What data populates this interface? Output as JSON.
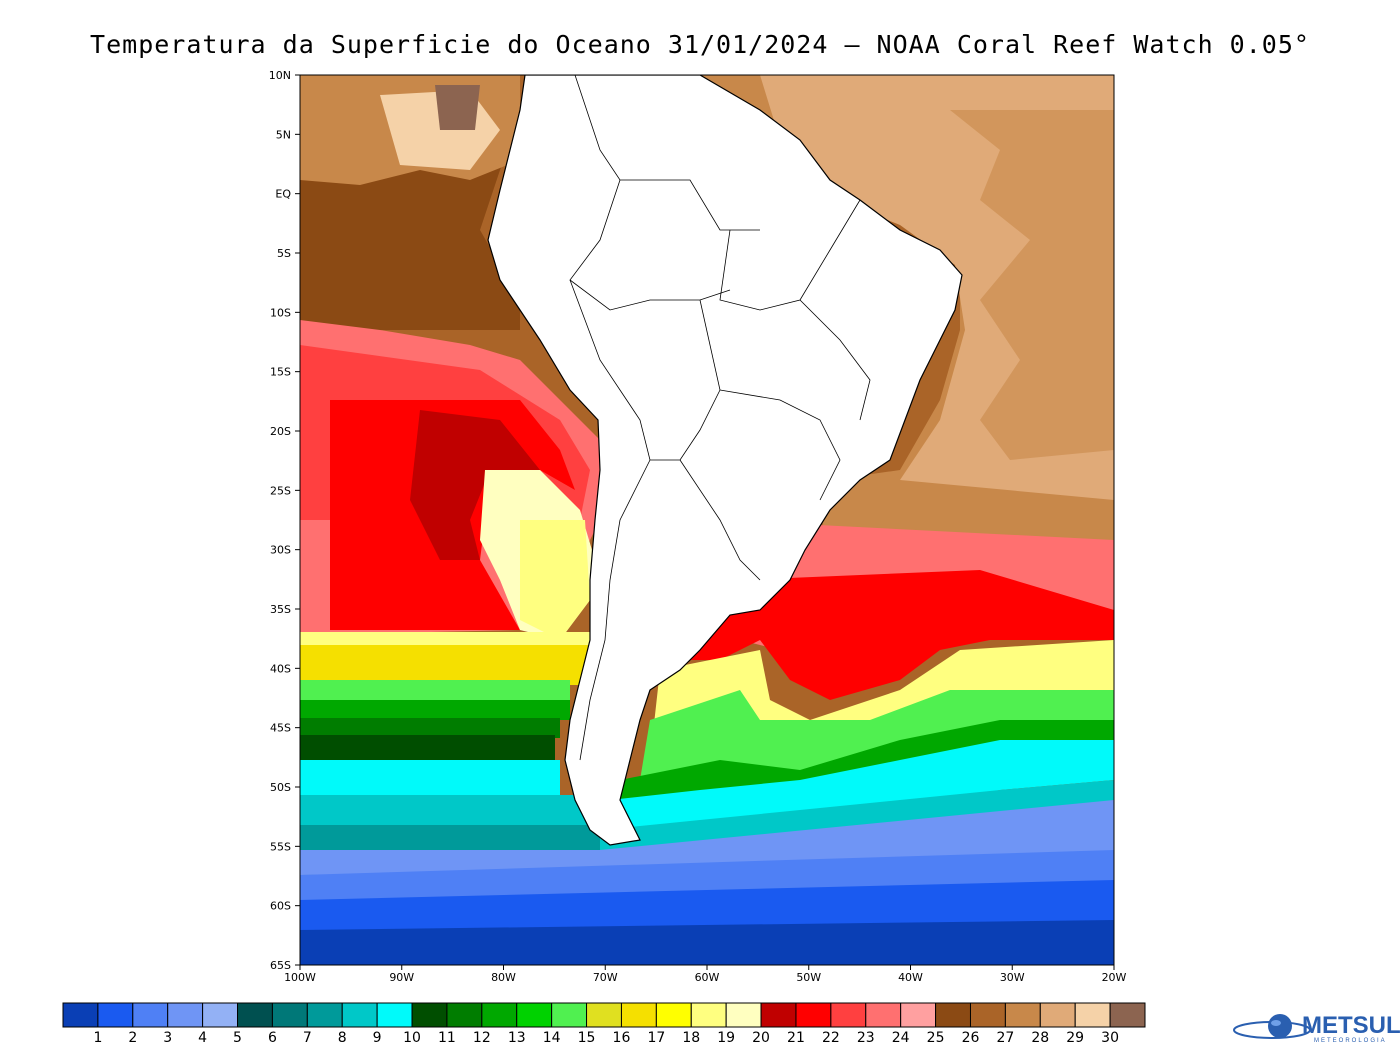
{
  "title": "Temperatura da Superficie do Oceano 31/01/2024 — NOAA Coral Reef Watch 0.05°",
  "map": {
    "lat_labels": [
      "10N",
      "5N",
      "EQ",
      "5S",
      "10S",
      "15S",
      "20S",
      "25S",
      "30S",
      "35S",
      "40S",
      "45S",
      "50S",
      "55S",
      "60S",
      "65S"
    ],
    "lon_labels": [
      "100W",
      "90W",
      "80W",
      "70W",
      "60W",
      "50W",
      "40W",
      "30W",
      "20W"
    ],
    "lat_values": [
      10,
      5,
      0,
      -5,
      -10,
      -15,
      -20,
      -25,
      -30,
      -35,
      -40,
      -45,
      -50,
      -55,
      -60,
      -65
    ],
    "lon_values": [
      -100,
      -90,
      -80,
      -70,
      -60,
      -50,
      -40,
      -30,
      -20
    ]
  },
  "colorbar": {
    "labels": [
      "1",
      "2",
      "3",
      "4",
      "5",
      "6",
      "7",
      "8",
      "9",
      "10",
      "11",
      "12",
      "13",
      "14",
      "15",
      "16",
      "17",
      "18",
      "19",
      "20",
      "21",
      "22",
      "23",
      "24",
      "25",
      "26",
      "27",
      "28",
      "29",
      "30"
    ],
    "colors": [
      "#0a3fb5",
      "#1a5af0",
      "#4f80f5",
      "#6f95f5",
      "#93b1f5",
      "#005050",
      "#007878",
      "#009a9a",
      "#00c8c8",
      "#00fafa",
      "#004e00",
      "#007d00",
      "#00a800",
      "#00d200",
      "#50f050",
      "#e0e020",
      "#f5e000",
      "#ffff00",
      "#ffff80",
      "#ffffc0",
      "#c00000",
      "#ff0000",
      "#ff4040",
      "#ff7070",
      "#ffa0a0",
      "#8b4a14",
      "#aa6428",
      "#c8884a",
      "#e0aa78",
      "#f5d2a8",
      "#8c6450"
    ]
  },
  "logo": {
    "name": "METSUL",
    "sub": "METEOROLOGIA"
  }
}
